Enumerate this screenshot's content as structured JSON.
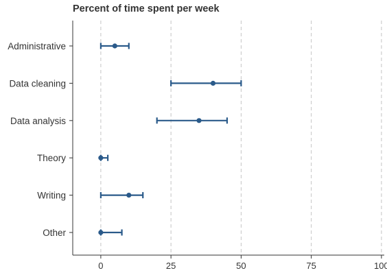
{
  "chart_data": {
    "type": "scatter",
    "title": "Percent of time spent per week",
    "xlabel": "",
    "ylabel": "",
    "xlim": [
      -10,
      101
    ],
    "xticks": [
      0,
      25,
      50,
      75,
      100
    ],
    "xtick_labels": [
      "0",
      "25",
      "50",
      "75",
      "100"
    ],
    "grid": "vertical dashed",
    "categories": [
      "Administrative",
      "Data cleaning",
      "Data analysis",
      "Theory",
      "Writing",
      "Other"
    ],
    "points": [
      {
        "category": "Administrative",
        "value": 5,
        "low": 0,
        "high": 10
      },
      {
        "category": "Data cleaning",
        "value": 40,
        "low": 25,
        "high": 50
      },
      {
        "category": "Data analysis",
        "value": 35,
        "low": 20,
        "high": 45
      },
      {
        "category": "Theory",
        "value": 0,
        "low": 0,
        "high": 2.5
      },
      {
        "category": "Writing",
        "value": 10,
        "low": 0,
        "high": 15
      },
      {
        "category": "Other",
        "value": 0,
        "low": 0,
        "high": 7.5
      }
    ],
    "color": "#2a5a8a"
  }
}
